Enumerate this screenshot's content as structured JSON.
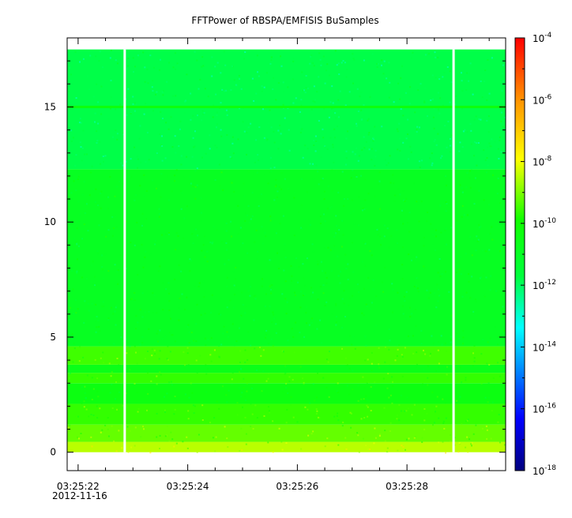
{
  "chart_data": {
    "type": "heatmap",
    "title": "FFTPower of RBSPA/EMFISIS  BuSamples",
    "xlabel": "",
    "ylabel": "",
    "x_range": [
      "03:25:21.8",
      "03:25:29.8"
    ],
    "ylim": [
      -0.8,
      18.0
    ],
    "y_ticks": [
      0,
      5,
      10,
      15
    ],
    "y_tick_labels": [
      "0",
      "5",
      "10",
      "15"
    ],
    "x_ticks_seconds": [
      22,
      24,
      26,
      28
    ],
    "x_tick_labels": [
      "03:25:22",
      "03:25:24",
      "03:25:26",
      "03:25:28"
    ],
    "x_date_label": "2012-11-16",
    "data_y_range": [
      0,
      17.5
    ],
    "data_gaps_seconds": [
      22.85,
      28.85
    ],
    "frequency_bands": [
      {
        "from": 0.0,
        "to": 0.45,
        "log10_power": -8.5
      },
      {
        "from": 0.45,
        "to": 1.2,
        "log10_power": -9.2
      },
      {
        "from": 1.2,
        "to": 2.1,
        "log10_power": -9.6
      },
      {
        "from": 2.1,
        "to": 3.0,
        "log10_power": -10.4
      },
      {
        "from": 3.0,
        "to": 3.45,
        "log10_power": -9.6
      },
      {
        "from": 3.45,
        "to": 3.8,
        "log10_power": -10.6
      },
      {
        "from": 3.8,
        "to": 4.6,
        "log10_power": -9.5
      },
      {
        "from": 4.6,
        "to": 12.3,
        "log10_power": -10.9
      },
      {
        "from": 12.3,
        "to": 17.5,
        "log10_power": -11.8
      }
    ],
    "lines": [
      {
        "y": 15.0,
        "log10_power": -10.2
      }
    ],
    "colorbar": {
      "scale": "log",
      "range": [
        1e-18,
        0.0001
      ],
      "tick_exponents": [
        -18,
        -16,
        -14,
        -12,
        -10,
        -8,
        -6,
        -4
      ],
      "tick_base": "10",
      "colors": [
        "#00007f",
        "#0000ff",
        "#00ffff",
        "#00ff00",
        "#ffff00",
        "#ff7f00",
        "#ff0000"
      ]
    }
  }
}
